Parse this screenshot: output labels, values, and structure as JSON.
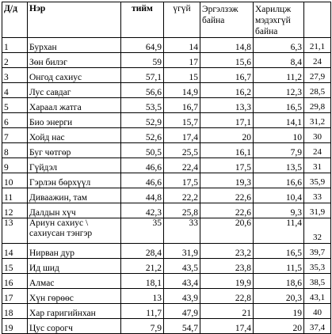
{
  "table": {
    "headers": {
      "n": "Д/д",
      "name": "Нэр",
      "yes": "тийм",
      "no": "үгүй",
      "doubt": "Эргэлзэж байна",
      "dontknow": "Харилцж мэдэхгүй байна"
    },
    "rows": [
      {
        "n": "1",
        "name": "Бурхан",
        "yes": "64,9",
        "no": "14",
        "doubt": "14,8",
        "dontknow": "6,3",
        "extra": "21,1"
      },
      {
        "n": "2",
        "name": "Зөн билэг",
        "yes": "59",
        "no": "17",
        "doubt": "15,6",
        "dontknow": "8,4",
        "extra": "24"
      },
      {
        "n": "3",
        "name": "Онгод сахиус",
        "yes": "57,1",
        "no": "15",
        "doubt": "16,7",
        "dontknow": "11,2",
        "extra": "27,9"
      },
      {
        "n": "4",
        "name": "Лус савдаг",
        "yes": "56,6",
        "no": "14,9",
        "doubt": "16,2",
        "dontknow": "12,3",
        "extra": "28,5"
      },
      {
        "n": "5",
        "name": "Хараал жатга",
        "yes": "53,5",
        "no": "16,7",
        "doubt": "13,3",
        "dontknow": "16,5",
        "extra": "29,8"
      },
      {
        "n": "6",
        "name": "Био энерги",
        "yes": "52,9",
        "no": "15,7",
        "doubt": "17,1",
        "dontknow": "14,1",
        "extra": "31,2"
      },
      {
        "n": "7",
        "name": "Хойд нас",
        "yes": "52,6",
        "no": "17,4",
        "doubt": "20",
        "dontknow": "10",
        "extra": "30"
      },
      {
        "n": "8",
        "name": "Буг чөтгөр",
        "yes": "50,5",
        "no": "25,5",
        "doubt": "16,1",
        "dontknow": "7,9",
        "extra": "24"
      },
      {
        "n": "9",
        "name": "Гүйдэл",
        "yes": "46,6",
        "no": "22,4",
        "doubt": "17,5",
        "dontknow": "13,5",
        "extra": "31"
      },
      {
        "n": "10",
        "name": "Гэрлэн бөрхүүл",
        "yes": "46,6",
        "no": "17,5",
        "doubt": "19,3",
        "dontknow": "16,6",
        "extra": "35,9"
      },
      {
        "n": "11",
        "name": "Диваажин, там",
        "yes": "44,8",
        "no": "22,2",
        "doubt": "22,6",
        "dontknow": "10,4",
        "extra": "33"
      },
      {
        "n": "12",
        "name": "Далдын хүч",
        "yes": "42,3",
        "no": "25,8",
        "doubt": "22,6",
        "dontknow": "9,3",
        "extra": "31,9"
      },
      {
        "n": "13",
        "name": "Ариун сахиус \\ сахиусан тэнгэр",
        "yes": "35",
        "no": "33",
        "doubt": "20,6",
        "dontknow": "11,4",
        "extra": "32"
      },
      {
        "n": "14",
        "name": "Нирван дур",
        "yes": "28,4",
        "no": "31,9",
        "doubt": "23,2",
        "dontknow": "16,5",
        "extra": "39,7"
      },
      {
        "n": "15",
        "name": "Ид шид",
        "yes": "21,2",
        "no": "43,5",
        "doubt": "23,8",
        "dontknow": "11,5",
        "extra": "35,3"
      },
      {
        "n": "16",
        "name": "Алмас",
        "yes": "18,1",
        "no": "43,4",
        "doubt": "19,9",
        "dontknow": "18,6",
        "extra": "38,5"
      },
      {
        "n": "17",
        "name": "Хүн гөрөөс",
        "yes": "13",
        "no": "43,9",
        "doubt": "22,8",
        "dontknow": "20,3",
        "extra": "43,1"
      },
      {
        "n": "18",
        "name": "Хар гаригийнхан",
        "yes": "11,7",
        "no": "47,9",
        "doubt": "21",
        "dontknow": "19",
        "extra": "40"
      },
      {
        "n": "19",
        "name": "Цус сорогч",
        "yes": "7,9",
        "no": "54,7",
        "doubt": "17,4",
        "dontknow": "20",
        "extra": "37,4"
      }
    ]
  }
}
